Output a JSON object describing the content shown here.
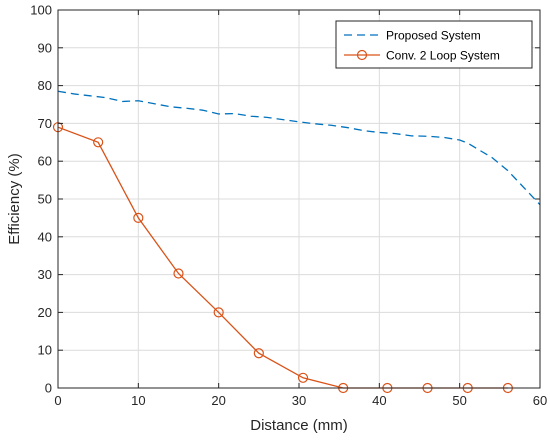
{
  "chart_data": {
    "type": "line",
    "title": "",
    "xlabel": "Distance (mm)",
    "ylabel": "Efficiency (%)",
    "xlim": [
      0,
      60
    ],
    "ylim": [
      0,
      100
    ],
    "xticks": [
      0,
      10,
      20,
      30,
      40,
      50,
      60
    ],
    "yticks": [
      0,
      10,
      20,
      30,
      40,
      50,
      60,
      70,
      80,
      90,
      100
    ],
    "grid": true,
    "legend_position": "top-right",
    "series": [
      {
        "name": "Proposed System",
        "color": "#0072BD",
        "style": "dashed",
        "marker": "none",
        "x": [
          0,
          2,
          4,
          6,
          8,
          10,
          12,
          14,
          16,
          18,
          20,
          22,
          24,
          26,
          28,
          30,
          32,
          34,
          36,
          38,
          40,
          42,
          44,
          46,
          48,
          50,
          51,
          52,
          54,
          56,
          58,
          60
        ],
        "y": [
          78.5,
          77.8,
          77.3,
          76.8,
          75.8,
          76.0,
          75.2,
          74.4,
          74.0,
          73.5,
          72.5,
          72.6,
          71.9,
          71.6,
          71.0,
          70.4,
          69.9,
          69.5,
          68.9,
          68.1,
          67.6,
          67.3,
          66.7,
          66.6,
          66.3,
          65.6,
          64.8,
          63.5,
          61.0,
          57.5,
          53.0,
          48.5
        ]
      },
      {
        "name": "Conv. 2 Loop System",
        "color": "#D95319",
        "style": "solid",
        "marker": "circle",
        "x": [
          0,
          5,
          10,
          15,
          20,
          25,
          30.5,
          35.5,
          41,
          46,
          51,
          56
        ],
        "y": [
          69,
          65,
          45,
          30.3,
          20,
          9.2,
          2.7,
          0,
          0,
          0,
          0,
          0
        ]
      }
    ]
  }
}
